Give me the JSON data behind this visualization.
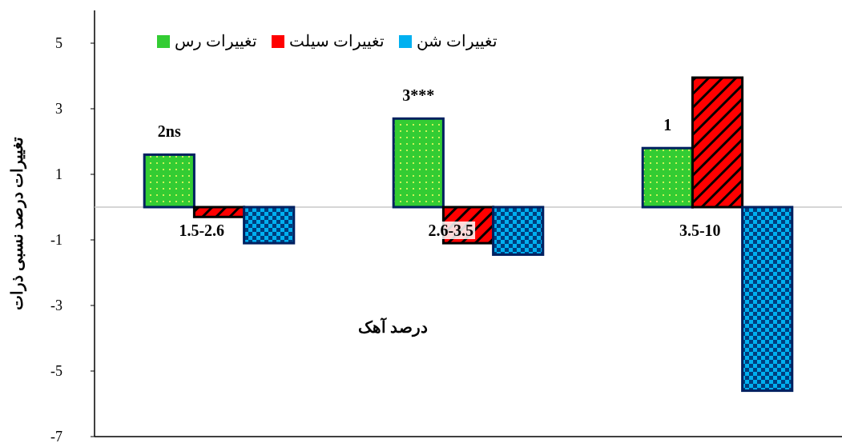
{
  "chart_data": {
    "type": "bar",
    "ylabel": "تغییرات درصد نسبی ذرات",
    "xlabel": "درصد آهک",
    "categories": [
      "1.5-2.6",
      "2.6-3.5",
      "3.5-10"
    ],
    "series": [
      {
        "name": "تغییرات رس",
        "color": "#33cc33",
        "values": [
          1.6,
          2.7,
          1.8
        ]
      },
      {
        "name": "تغییرات سیلت",
        "color": "#ff0000",
        "values": [
          -0.3,
          -1.1,
          3.95
        ]
      },
      {
        "name": "تغییرات شن",
        "color": "#00b0f0",
        "values": [
          -1.1,
          -1.45,
          -5.6
        ]
      }
    ],
    "ylim": [
      -7,
      6
    ],
    "yticks": [
      -7,
      -5,
      -3,
      -1,
      1,
      3,
      5
    ],
    "annotations": [
      "2ns",
      "3***",
      "1"
    ],
    "grid": false,
    "legend": "top left"
  }
}
